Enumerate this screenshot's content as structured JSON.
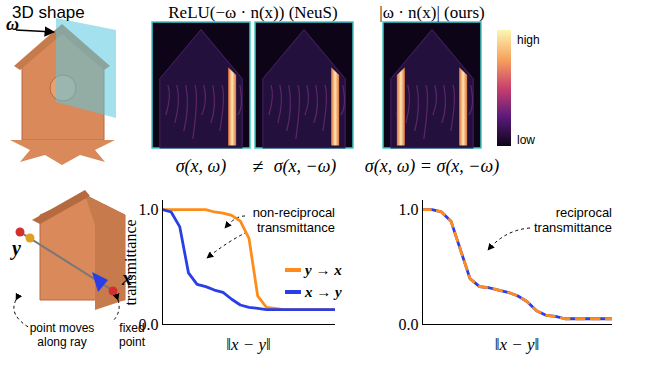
{
  "panels": {
    "shape_label": "3D shape",
    "omega": "ω",
    "heatmap_titles": [
      "ReLU(−ω · n(x)) (NeuS)",
      "|ω · n(x)| (ours)"
    ],
    "colorbar": {
      "high": "high",
      "low": "low"
    },
    "relations": {
      "neus": [
        "σ(x, ω)",
        "≠",
        "σ(x, −ω)"
      ],
      "ours": "σ(x, ω) = σ(x, −ω)"
    }
  },
  "ray": {
    "y": "y",
    "x": "x",
    "y_note": [
      "point moves",
      "along ray"
    ],
    "x_note": [
      "fixed",
      "point"
    ]
  },
  "chart_data": [
    {
      "type": "line",
      "ylabel": "transmittance",
      "xlabel": "‖x − y‖",
      "x": [
        0,
        0.05,
        0.1,
        0.15,
        0.2,
        0.25,
        0.3,
        0.35,
        0.4,
        0.45,
        0.5,
        0.55,
        0.6,
        0.65,
        0.7,
        0.75,
        0.8,
        0.85,
        0.9,
        0.95,
        1
      ],
      "xlim": [
        0,
        1
      ],
      "ylim": [
        0,
        1.08
      ],
      "yticks": [
        0,
        1
      ],
      "tick_labels": "y",
      "legend": "right",
      "annotation": [
        "non-reciprocal",
        "transmittance"
      ],
      "series": [
        {
          "name": "y → x",
          "color": "#ff8c1a",
          "line_style": "solid",
          "values": [
            1,
            1,
            1,
            1,
            1,
            1,
            0.98,
            0.97,
            0.95,
            0.9,
            0.75,
            0.25,
            0.15,
            0.14,
            0.13,
            0.13,
            0.13,
            0.13,
            0.13,
            0.13,
            0.13
          ]
        },
        {
          "name": "x → y",
          "color": "#2a3ee8",
          "line_style": "solid",
          "values": [
            1,
            0.98,
            0.85,
            0.45,
            0.35,
            0.33,
            0.3,
            0.28,
            0.22,
            0.17,
            0.15,
            0.14,
            0.13,
            0.13,
            0.13,
            0.13,
            0.13,
            0.13,
            0.13,
            0.13,
            0.13
          ]
        }
      ]
    },
    {
      "type": "line",
      "xlabel": "‖x − y‖",
      "x": [
        0,
        0.05,
        0.1,
        0.15,
        0.2,
        0.25,
        0.3,
        0.35,
        0.4,
        0.45,
        0.5,
        0.55,
        0.6,
        0.65,
        0.7,
        0.75,
        0.8,
        0.85,
        0.9,
        0.95,
        1
      ],
      "xlim": [
        0,
        1
      ],
      "ylim": [
        0,
        1.08
      ],
      "yticks": [
        0,
        1
      ],
      "tick_labels": "y",
      "annotation": [
        "reciprocal",
        "transmittance"
      ],
      "series": [
        {
          "color": "#2a3ee8",
          "line_style": "solid",
          "values": [
            1,
            1,
            0.98,
            0.9,
            0.65,
            0.4,
            0.33,
            0.32,
            0.3,
            0.28,
            0.25,
            0.2,
            0.12,
            0.08,
            0.07,
            0.05,
            0.05,
            0.05,
            0.05,
            0.05,
            0.05
          ]
        },
        {
          "color": "#ff8c1a",
          "line_style": "dashed",
          "values": [
            1,
            1,
            0.98,
            0.9,
            0.65,
            0.4,
            0.33,
            0.32,
            0.3,
            0.28,
            0.25,
            0.2,
            0.12,
            0.08,
            0.07,
            0.05,
            0.05,
            0.05,
            0.05,
            0.05,
            0.05
          ]
        }
      ]
    }
  ]
}
